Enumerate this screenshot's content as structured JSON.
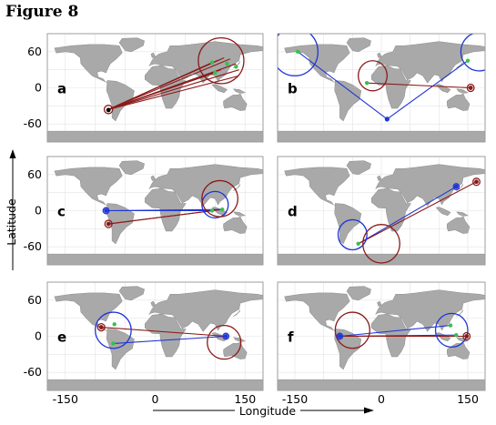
{
  "figure": {
    "title": "Figure 8",
    "xlabel": "Longitude",
    "ylabel": "Latitude"
  },
  "colors": {
    "land": "#a9a9a9",
    "ocean": "#ffffff",
    "grid": "#e3e3e3",
    "red_route": "#8b1a1a",
    "blue_route": "#1f35d6",
    "green_point": "#35c24a"
  },
  "chart_data": [
    {
      "type": "scatter",
      "panel": "a",
      "xticks": [],
      "yticks": [
        60,
        0,
        -60
      ],
      "xlim": [
        -180,
        180
      ],
      "ylim": [
        -90,
        90
      ],
      "circles": [
        {
          "color": "red",
          "lon": -78,
          "lat": -36,
          "r": 7
        },
        {
          "color": "red",
          "lon": 110,
          "lat": 45,
          "r": 38
        }
      ],
      "centers": [
        {
          "color": "black",
          "lon": -78,
          "lat": -37
        }
      ],
      "points": [
        {
          "lon": 95,
          "lat": 42
        },
        {
          "lon": 120,
          "lat": 40
        },
        {
          "lon": 135,
          "lat": 35
        },
        {
          "lon": 100,
          "lat": 25
        }
      ],
      "lines": [
        {
          "color": "red",
          "from": [
            -78,
            -36
          ],
          "to": [
            95,
            42
          ]
        },
        {
          "color": "red",
          "from": [
            -78,
            -36
          ],
          "to": [
            105,
            46
          ]
        },
        {
          "color": "red",
          "from": [
            -78,
            -36
          ],
          "to": [
            115,
            50
          ]
        },
        {
          "color": "red",
          "from": [
            -78,
            -36
          ],
          "to": [
            125,
            48
          ]
        },
        {
          "color": "red",
          "from": [
            -78,
            -36
          ],
          "to": [
            135,
            40
          ]
        },
        {
          "color": "red",
          "from": [
            -78,
            -36
          ],
          "to": [
            140,
            30
          ]
        },
        {
          "color": "red",
          "from": [
            -78,
            -36
          ],
          "to": [
            140,
            20
          ]
        },
        {
          "color": "red",
          "from": [
            -78,
            -36
          ],
          "to": [
            100,
            25
          ]
        },
        {
          "color": "red",
          "from": [
            -78,
            -36
          ],
          "to": [
            110,
            30
          ]
        }
      ]
    },
    {
      "type": "scatter",
      "panel": "b",
      "xticks": [],
      "yticks": [],
      "xlim": [
        -180,
        180
      ],
      "ylim": [
        -90,
        90
      ],
      "circles": [
        {
          "color": "blue",
          "lon": -150,
          "lat": 60,
          "r": 40
        },
        {
          "color": "blue",
          "lon": 170,
          "lat": 60,
          "r": 32
        },
        {
          "color": "blue",
          "lon": 10,
          "lat": -52,
          "r": 3
        },
        {
          "color": "red",
          "lon": -15,
          "lat": 20,
          "r": 25
        },
        {
          "color": "red",
          "lon": 155,
          "lat": 0,
          "r": 6
        }
      ],
      "centers": [
        {
          "color": "blue",
          "lon": 10,
          "lat": -52
        },
        {
          "color": "red",
          "lon": 155,
          "lat": 0
        }
      ],
      "points": [
        {
          "lon": -145,
          "lat": 60
        },
        {
          "lon": 150,
          "lat": 45
        },
        {
          "lon": -25,
          "lat": 8
        }
      ],
      "lines": [
        {
          "color": "blue",
          "from": [
            -145,
            60
          ],
          "to": [
            10,
            -52
          ]
        },
        {
          "color": "blue",
          "from": [
            10,
            -52
          ],
          "to": [
            150,
            45
          ]
        },
        {
          "color": "red",
          "from": [
            -25,
            8
          ],
          "to": [
            155,
            0
          ]
        }
      ]
    },
    {
      "type": "scatter",
      "panel": "c",
      "xticks": [],
      "yticks": [
        60,
        0,
        -60
      ],
      "xlim": [
        -180,
        180
      ],
      "ylim": [
        -90,
        90
      ],
      "circles": [
        {
          "color": "blue",
          "lon": -82,
          "lat": 0,
          "r": 5
        },
        {
          "color": "red",
          "lon": -78,
          "lat": -22,
          "r": 6
        },
        {
          "color": "blue",
          "lon": 100,
          "lat": 10,
          "r": 22
        },
        {
          "color": "red",
          "lon": 108,
          "lat": 20,
          "r": 30
        }
      ],
      "centers": [
        {
          "color": "blue",
          "lon": -82,
          "lat": 0
        },
        {
          "color": "red",
          "lon": -78,
          "lat": -22
        }
      ],
      "points": [
        {
          "lon": 95,
          "lat": 0
        },
        {
          "lon": 112,
          "lat": 2
        }
      ],
      "lines": [
        {
          "color": "blue",
          "from": [
            -82,
            0
          ],
          "to": [
            95,
            0
          ]
        },
        {
          "color": "blue",
          "from": [
            -82,
            0
          ],
          "to": [
            112,
            2
          ]
        },
        {
          "color": "red",
          "from": [
            -78,
            -22
          ],
          "to": [
            95,
            0
          ]
        },
        {
          "color": "red",
          "from": [
            -78,
            -22
          ],
          "to": [
            112,
            2
          ]
        }
      ]
    },
    {
      "type": "scatter",
      "panel": "d",
      "xticks": [],
      "yticks": [],
      "xlim": [
        -180,
        180
      ],
      "ylim": [
        -90,
        90
      ],
      "circles": [
        {
          "color": "blue",
          "lon": -50,
          "lat": -40,
          "r": 25
        },
        {
          "color": "red",
          "lon": 0,
          "lat": -55,
          "r": 32
        },
        {
          "color": "blue",
          "lon": 130,
          "lat": 40,
          "r": 5
        },
        {
          "color": "red",
          "lon": 165,
          "lat": 48,
          "r": 6
        }
      ],
      "centers": [
        {
          "color": "blue",
          "lon": 130,
          "lat": 40
        },
        {
          "color": "red",
          "lon": 165,
          "lat": 48
        }
      ],
      "points": [
        {
          "lon": -40,
          "lat": -55
        }
      ],
      "lines": [
        {
          "color": "blue",
          "from": [
            -40,
            -55
          ],
          "to": [
            130,
            40
          ]
        },
        {
          "color": "red",
          "from": [
            -40,
            -55
          ],
          "to": [
            165,
            48
          ]
        }
      ]
    },
    {
      "type": "scatter",
      "panel": "e",
      "xticks": [
        -150,
        0,
        150
      ],
      "yticks": [
        60,
        0,
        -60
      ],
      "xlim": [
        -180,
        180
      ],
      "ylim": [
        -90,
        90
      ],
      "circles": [
        {
          "color": "blue",
          "lon": -70,
          "lat": 10,
          "r": 30
        },
        {
          "color": "red",
          "lon": -90,
          "lat": 15,
          "r": 6
        },
        {
          "color": "red",
          "lon": 115,
          "lat": -10,
          "r": 28
        },
        {
          "color": "blue",
          "lon": 118,
          "lat": 0,
          "r": 5
        }
      ],
      "centers": [
        {
          "color": "red",
          "lon": -90,
          "lat": 15
        },
        {
          "color": "blue",
          "lon": 118,
          "lat": 0
        }
      ],
      "points": [
        {
          "lon": -70,
          "lat": -12
        },
        {
          "lon": -68,
          "lat": 20
        }
      ],
      "lines": [
        {
          "color": "blue",
          "from": [
            -70,
            -12
          ],
          "to": [
            118,
            0
          ]
        },
        {
          "color": "red",
          "from": [
            -90,
            15
          ],
          "to": [
            118,
            0
          ]
        }
      ]
    },
    {
      "type": "scatter",
      "panel": "f",
      "xticks": [
        -150,
        0,
        150
      ],
      "yticks": [],
      "xlim": [
        -180,
        180
      ],
      "ylim": [
        -90,
        90
      ],
      "circles": [
        {
          "color": "red",
          "lon": -50,
          "lat": 10,
          "r": 30
        },
        {
          "color": "blue",
          "lon": -72,
          "lat": 0,
          "r": 5
        },
        {
          "color": "blue",
          "lon": 122,
          "lat": 10,
          "r": 28
        },
        {
          "color": "red",
          "lon": 148,
          "lat": 0,
          "r": 6
        }
      ],
      "centers": [
        {
          "color": "blue",
          "lon": -72,
          "lat": 0
        },
        {
          "color": "red",
          "lon": 148,
          "lat": 0
        }
      ],
      "points": [
        {
          "lon": 120,
          "lat": 18
        },
        {
          "lon": 130,
          "lat": 2
        }
      ],
      "lines": [
        {
          "color": "blue",
          "from": [
            -72,
            0
          ],
          "to": [
            120,
            18
          ]
        },
        {
          "color": "blue",
          "from": [
            -72,
            0
          ],
          "to": [
            130,
            2
          ]
        },
        {
          "color": "red",
          "from": [
            -72,
            0
          ],
          "to": [
            148,
            0
          ]
        }
      ]
    }
  ]
}
